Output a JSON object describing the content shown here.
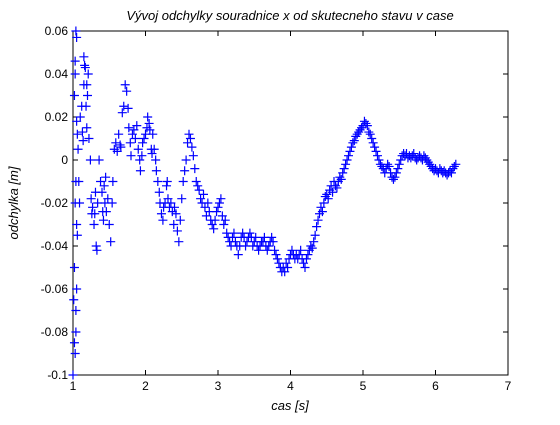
{
  "chart_data": {
    "type": "scatter",
    "title": "Vývoj odchylky souradnice x od skutecneho stavu v case",
    "xlabel": "cas [s]",
    "ylabel": "odchylka [m]",
    "xlim": [
      1,
      7
    ],
    "ylim": [
      -0.1,
      0.06
    ],
    "xticks": [
      "1",
      "2",
      "3",
      "4",
      "5",
      "6",
      "7"
    ],
    "yticks": [
      "0.06",
      "0.04",
      "0.02",
      "0",
      "-0.02",
      "-0.04",
      "-0.06",
      "-0.08",
      "-0.1"
    ],
    "marker": "+",
    "colors": {
      "points": "#0000ff",
      "axes": "#000000",
      "background": "#ffffff"
    },
    "grid": false,
    "series": [
      {
        "points": [
          [
            1.0,
            -0.1
          ],
          [
            1.01,
            -0.065
          ],
          [
            1.02,
            -0.05
          ],
          [
            1.02,
            -0.085
          ],
          [
            1.03,
            -0.09
          ],
          [
            1.04,
            -0.08
          ],
          [
            1.04,
            -0.07
          ],
          [
            1.05,
            -0.06
          ],
          [
            1.05,
            -0.03
          ],
          [
            1.06,
            -0.035
          ],
          [
            1.03,
            -0.02
          ],
          [
            1.04,
            -0.01
          ],
          [
            1.02,
            0.03
          ],
          [
            1.03,
            0.04
          ],
          [
            1.03,
            0.046
          ],
          [
            1.04,
            0.06
          ],
          [
            1.05,
            0.057
          ],
          [
            1.05,
            0.018
          ],
          [
            1.06,
            0.012
          ],
          [
            1.07,
            0.005
          ],
          [
            1.08,
            -0.01
          ],
          [
            1.09,
            -0.02
          ],
          [
            1.1,
            0.02
          ],
          [
            1.12,
            0.025
          ],
          [
            1.13,
            0.013
          ],
          [
            1.14,
            0.009
          ],
          [
            1.15,
            0.035
          ],
          [
            1.15,
            0.048
          ],
          [
            1.16,
            0.044
          ],
          [
            1.17,
            0.043
          ],
          [
            1.18,
            0.025
          ],
          [
            1.19,
            0.035
          ],
          [
            1.2,
            0.03
          ],
          [
            1.21,
            0.04
          ],
          [
            1.19,
            0.015
          ],
          [
            1.22,
            0.01
          ],
          [
            1.24,
            0.0
          ],
          [
            1.25,
            -0.018
          ],
          [
            1.26,
            -0.025
          ],
          [
            1.27,
            -0.022
          ],
          [
            1.29,
            -0.03
          ],
          [
            1.3,
            -0.025
          ],
          [
            1.31,
            -0.015
          ],
          [
            1.32,
            -0.04
          ],
          [
            1.33,
            -0.042
          ],
          [
            1.34,
            -0.02
          ],
          [
            1.36,
            0.0
          ],
          [
            1.38,
            -0.01
          ],
          [
            1.4,
            -0.015
          ],
          [
            1.41,
            -0.024
          ],
          [
            1.42,
            -0.028
          ],
          [
            1.43,
            -0.012
          ],
          [
            1.44,
            -0.02
          ],
          [
            1.45,
            -0.008
          ],
          [
            1.46,
            -0.024
          ],
          [
            1.48,
            -0.018
          ],
          [
            1.5,
            -0.03
          ],
          [
            1.52,
            -0.038
          ],
          [
            1.54,
            -0.02
          ],
          [
            1.55,
            -0.01
          ],
          [
            1.57,
            0.005
          ],
          [
            1.59,
            0.008
          ],
          [
            1.61,
            0.004
          ],
          [
            1.63,
            0.012
          ],
          [
            1.65,
            0.007
          ],
          [
            1.66,
            0.006
          ],
          [
            1.68,
            0.022
          ],
          [
            1.7,
            0.025
          ],
          [
            1.72,
            0.035
          ],
          [
            1.74,
            0.032
          ],
          [
            1.76,
            0.024
          ],
          [
            1.77,
            0.015
          ],
          [
            1.79,
            0.008
          ],
          [
            1.8,
            0.002
          ],
          [
            1.82,
            0.012
          ],
          [
            1.84,
            0.014
          ],
          [
            1.86,
            0.01
          ],
          [
            1.88,
            0.016
          ],
          [
            1.9,
            0.005
          ],
          [
            1.92,
            0.0
          ],
          [
            1.93,
            -0.005
          ],
          [
            1.95,
            0.002
          ],
          [
            1.96,
            0.008
          ],
          [
            1.98,
            0.01
          ],
          [
            2.0,
            0.012
          ],
          [
            2.02,
            0.015
          ],
          [
            2.03,
            0.02
          ],
          [
            2.05,
            0.017
          ],
          [
            2.06,
            0.014
          ],
          [
            2.08,
            0.005
          ],
          [
            2.09,
            0.003
          ],
          [
            2.1,
            0.012
          ],
          [
            2.12,
            0.005
          ],
          [
            2.14,
            0.0
          ],
          [
            2.15,
            -0.005
          ],
          [
            2.17,
            -0.01
          ],
          [
            2.19,
            -0.015
          ],
          [
            2.2,
            -0.02
          ],
          [
            2.22,
            -0.025
          ],
          [
            2.24,
            -0.028
          ],
          [
            2.25,
            -0.022
          ],
          [
            2.27,
            -0.02
          ],
          [
            2.29,
            -0.012
          ],
          [
            2.3,
            -0.01
          ],
          [
            2.31,
            -0.018
          ],
          [
            2.33,
            -0.022
          ],
          [
            2.35,
            -0.02
          ],
          [
            2.37,
            -0.024
          ],
          [
            2.39,
            -0.03
          ],
          [
            2.4,
            -0.022
          ],
          [
            2.42,
            -0.025
          ],
          [
            2.44,
            -0.033
          ],
          [
            2.46,
            -0.038
          ],
          [
            2.48,
            -0.028
          ],
          [
            2.5,
            -0.018
          ],
          [
            2.52,
            -0.01
          ],
          [
            2.54,
            -0.005
          ],
          [
            2.56,
            0.0
          ],
          [
            2.58,
            0.008
          ],
          [
            2.6,
            0.012
          ],
          [
            2.62,
            0.01
          ],
          [
            2.64,
            0.006
          ],
          [
            2.66,
            0.002
          ],
          [
            2.68,
            -0.004
          ],
          [
            2.7,
            -0.01
          ],
          [
            2.72,
            -0.012
          ],
          [
            2.74,
            -0.014
          ],
          [
            2.76,
            -0.018
          ],
          [
            2.78,
            -0.02
          ],
          [
            2.8,
            -0.016
          ],
          [
            2.82,
            -0.022
          ],
          [
            2.84,
            -0.026
          ],
          [
            2.86,
            -0.02
          ],
          [
            2.88,
            -0.024
          ],
          [
            2.9,
            -0.028
          ],
          [
            2.92,
            -0.03
          ],
          [
            2.94,
            -0.032
          ],
          [
            2.96,
            -0.028
          ],
          [
            2.98,
            -0.024
          ],
          [
            3.0,
            -0.022
          ],
          [
            3.02,
            -0.02
          ],
          [
            3.04,
            -0.018
          ],
          [
            3.06,
            -0.026
          ],
          [
            3.08,
            -0.03
          ],
          [
            3.1,
            -0.028
          ],
          [
            3.12,
            -0.034
          ],
          [
            3.14,
            -0.036
          ],
          [
            3.16,
            -0.038
          ],
          [
            3.18,
            -0.04
          ],
          [
            3.2,
            -0.036
          ],
          [
            3.22,
            -0.034
          ],
          [
            3.24,
            -0.038
          ],
          [
            3.26,
            -0.04
          ],
          [
            3.28,
            -0.044
          ],
          [
            3.3,
            -0.04
          ],
          [
            3.32,
            -0.036
          ],
          [
            3.34,
            -0.034
          ],
          [
            3.36,
            -0.036
          ],
          [
            3.38,
            -0.04
          ],
          [
            3.4,
            -0.038
          ],
          [
            3.42,
            -0.036
          ],
          [
            3.44,
            -0.034
          ],
          [
            3.46,
            -0.036
          ],
          [
            3.48,
            -0.04
          ],
          [
            3.5,
            -0.038
          ],
          [
            3.52,
            -0.036
          ],
          [
            3.54,
            -0.04
          ],
          [
            3.56,
            -0.042
          ],
          [
            3.58,
            -0.04
          ],
          [
            3.6,
            -0.038
          ],
          [
            3.62,
            -0.038
          ],
          [
            3.64,
            -0.036
          ],
          [
            3.66,
            -0.04
          ],
          [
            3.68,
            -0.042
          ],
          [
            3.7,
            -0.04
          ],
          [
            3.72,
            -0.038
          ],
          [
            3.74,
            -0.036
          ],
          [
            3.76,
            -0.038
          ],
          [
            3.78,
            -0.042
          ],
          [
            3.8,
            -0.044
          ],
          [
            3.82,
            -0.046
          ],
          [
            3.84,
            -0.048
          ],
          [
            3.86,
            -0.05
          ],
          [
            3.88,
            -0.052
          ],
          [
            3.9,
            -0.05
          ],
          [
            3.92,
            -0.052
          ],
          [
            3.94,
            -0.048
          ],
          [
            3.96,
            -0.05
          ],
          [
            3.98,
            -0.046
          ],
          [
            4.0,
            -0.044
          ],
          [
            4.02,
            -0.042
          ],
          [
            4.04,
            -0.044
          ],
          [
            4.06,
            -0.046
          ],
          [
            4.08,
            -0.044
          ],
          [
            4.1,
            -0.046
          ],
          [
            4.12,
            -0.044
          ],
          [
            4.14,
            -0.042
          ],
          [
            4.16,
            -0.046
          ],
          [
            4.18,
            -0.048
          ],
          [
            4.2,
            -0.05
          ],
          [
            4.22,
            -0.046
          ],
          [
            4.24,
            -0.044
          ],
          [
            4.26,
            -0.042
          ],
          [
            4.28,
            -0.04
          ],
          [
            4.3,
            -0.041
          ],
          [
            4.32,
            -0.038
          ],
          [
            4.34,
            -0.035
          ],
          [
            4.36,
            -0.031
          ],
          [
            4.38,
            -0.028
          ],
          [
            4.4,
            -0.025
          ],
          [
            4.42,
            -0.022
          ],
          [
            4.44,
            -0.024
          ],
          [
            4.46,
            -0.02
          ],
          [
            4.48,
            -0.017
          ],
          [
            4.5,
            -0.016
          ],
          [
            4.52,
            -0.018
          ],
          [
            4.54,
            -0.014
          ],
          [
            4.56,
            -0.012
          ],
          [
            4.58,
            -0.015
          ],
          [
            4.6,
            -0.01
          ],
          [
            4.62,
            -0.012
          ],
          [
            4.64,
            -0.013
          ],
          [
            4.66,
            -0.01
          ],
          [
            4.68,
            -0.008
          ],
          [
            4.7,
            -0.009
          ],
          [
            4.72,
            -0.006
          ],
          [
            4.74,
            -0.004
          ],
          [
            4.76,
            -0.002
          ],
          [
            4.78,
            0.0
          ],
          [
            4.8,
            0.002
          ],
          [
            4.82,
            0.004
          ],
          [
            4.84,
            0.006
          ],
          [
            4.86,
            0.008
          ],
          [
            4.88,
            0.009
          ],
          [
            4.9,
            0.011
          ],
          [
            4.92,
            0.012
          ],
          [
            4.94,
            0.013
          ],
          [
            4.96,
            0.014
          ],
          [
            4.98,
            0.015
          ],
          [
            5.0,
            0.016
          ],
          [
            5.02,
            0.018
          ],
          [
            5.04,
            0.017
          ],
          [
            5.06,
            0.016
          ],
          [
            5.08,
            0.013
          ],
          [
            5.1,
            0.012
          ],
          [
            5.12,
            0.01
          ],
          [
            5.14,
            0.008
          ],
          [
            5.16,
            0.006
          ],
          [
            5.18,
            0.004
          ],
          [
            5.2,
            0.002
          ],
          [
            5.22,
            0.0
          ],
          [
            5.24,
            -0.002
          ],
          [
            5.26,
            -0.003
          ],
          [
            5.28,
            -0.004
          ],
          [
            5.3,
            -0.006
          ],
          [
            5.32,
            -0.004
          ],
          [
            5.34,
            -0.002
          ],
          [
            5.36,
            -0.003
          ],
          [
            5.38,
            -0.006
          ],
          [
            5.4,
            -0.008
          ],
          [
            5.42,
            -0.009
          ],
          [
            5.44,
            -0.008
          ],
          [
            5.46,
            -0.006
          ],
          [
            5.48,
            -0.004
          ],
          [
            5.5,
            -0.002
          ],
          [
            5.52,
            0.0
          ],
          [
            5.54,
            0.002
          ],
          [
            5.56,
            0.003
          ],
          [
            5.58,
            0.002
          ],
          [
            5.6,
            0.003
          ],
          [
            5.62,
            0.001
          ],
          [
            5.64,
            0.002
          ],
          [
            5.66,
            0.001
          ],
          [
            5.68,
            0.002
          ],
          [
            5.7,
            0.003
          ],
          [
            5.72,
            0.001
          ],
          [
            5.74,
            0.0
          ],
          [
            5.76,
            0.001
          ],
          [
            5.78,
            0.002
          ],
          [
            5.8,
            0.001
          ],
          [
            5.82,
            0.0
          ],
          [
            5.84,
            0.002
          ],
          [
            5.86,
            0.001
          ],
          [
            5.88,
            0.0
          ],
          [
            5.9,
            -0.001
          ],
          [
            5.92,
            -0.002
          ],
          [
            5.94,
            -0.003
          ],
          [
            5.96,
            -0.004
          ],
          [
            5.98,
            -0.005
          ],
          [
            6.0,
            -0.004
          ],
          [
            6.02,
            -0.005
          ],
          [
            6.04,
            -0.006
          ],
          [
            6.06,
            -0.004
          ],
          [
            6.08,
            -0.005
          ],
          [
            6.1,
            -0.006
          ],
          [
            6.12,
            -0.005
          ],
          [
            6.14,
            -0.006
          ],
          [
            6.16,
            -0.007
          ],
          [
            6.18,
            -0.006
          ],
          [
            6.2,
            -0.005
          ],
          [
            6.22,
            -0.006
          ],
          [
            6.24,
            -0.004
          ],
          [
            6.26,
            -0.003
          ],
          [
            6.28,
            -0.002
          ]
        ]
      }
    ]
  }
}
